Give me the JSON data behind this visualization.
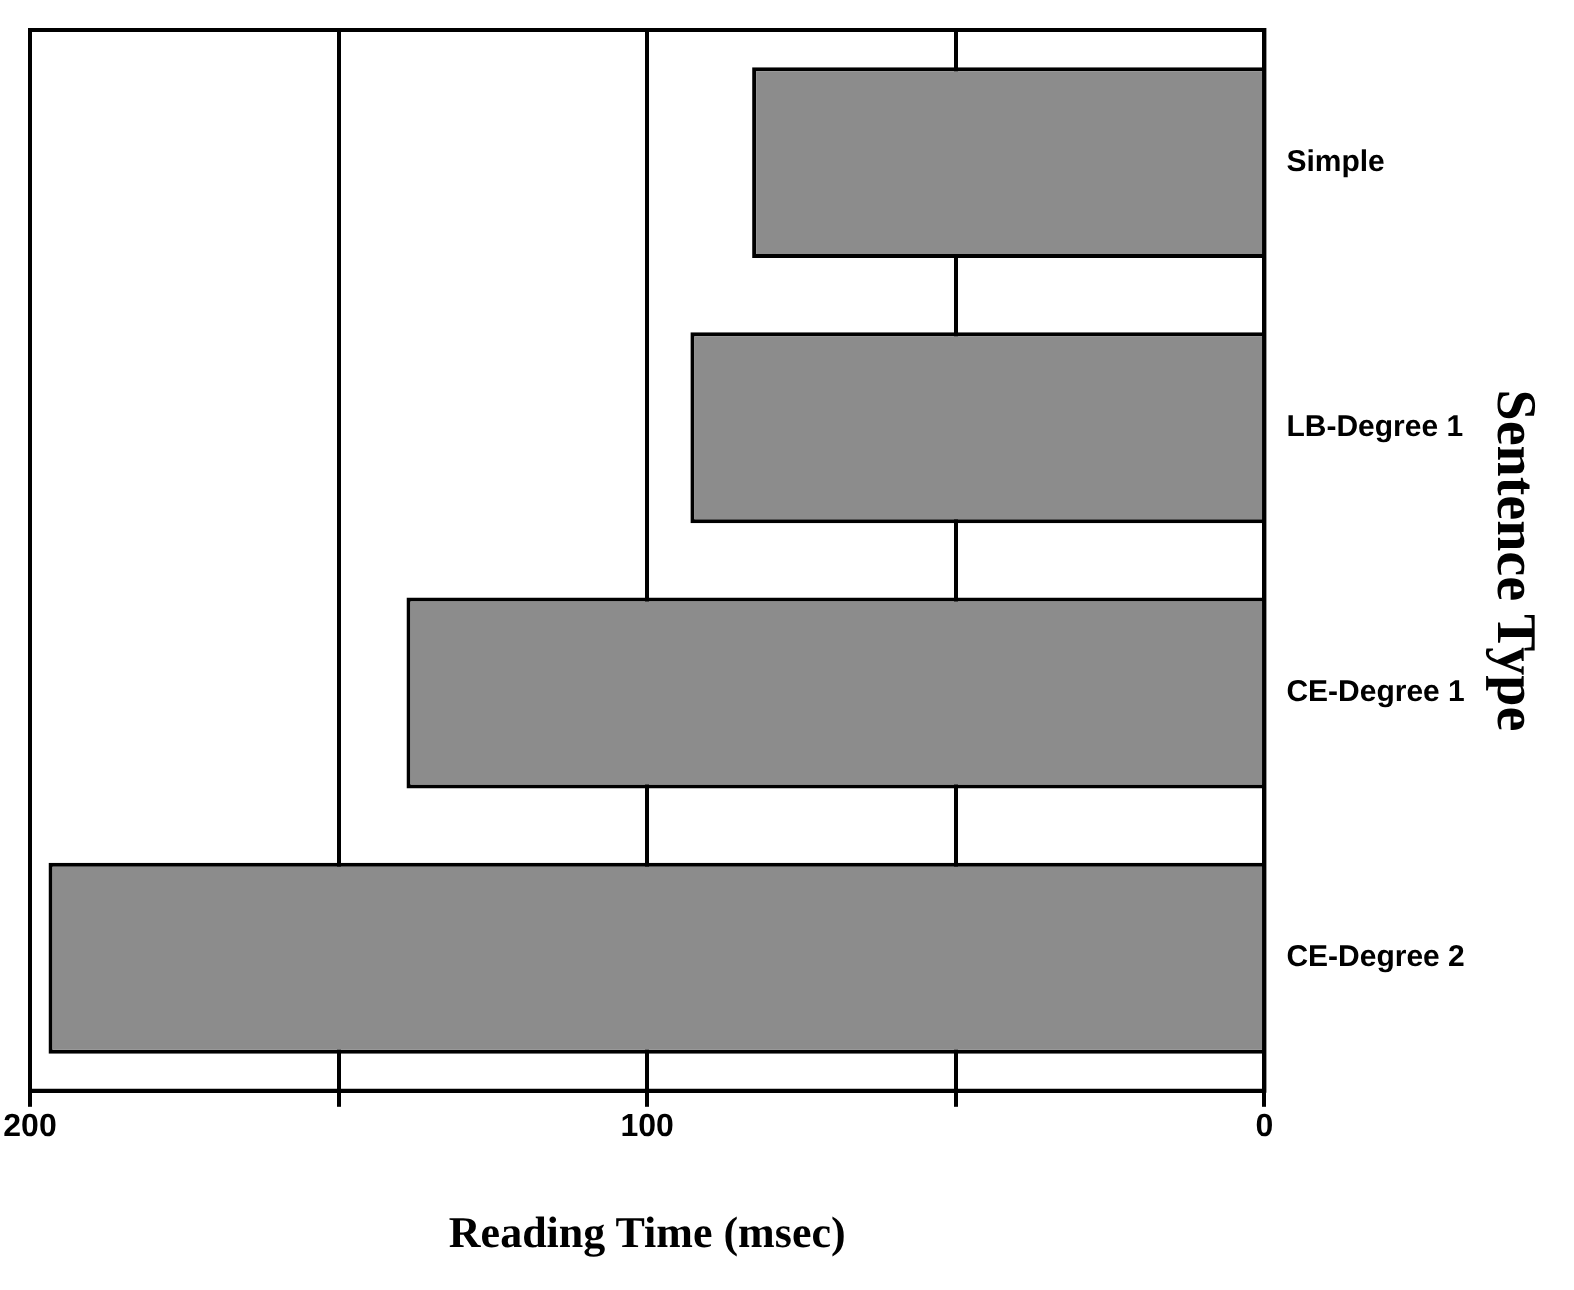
{
  "chart_data": {
    "type": "bar",
    "orientation": "horizontal",
    "xlabel": "Reading Time (msec)",
    "ylabel": "Sentence Type",
    "categories": [
      "Simple",
      "LB-Degree 1",
      "CE-Degree 1",
      "CE-Degree 2"
    ],
    "values": [
      83,
      93,
      139,
      197
    ],
    "color": "#8c8c8c",
    "xlim": [
      200,
      0
    ],
    "xticks": [
      0,
      {
        "value": 50,
        "label": null
      },
      100,
      {
        "value": 150,
        "label": null
      },
      200
    ],
    "grid": "x",
    "legend": false
  }
}
